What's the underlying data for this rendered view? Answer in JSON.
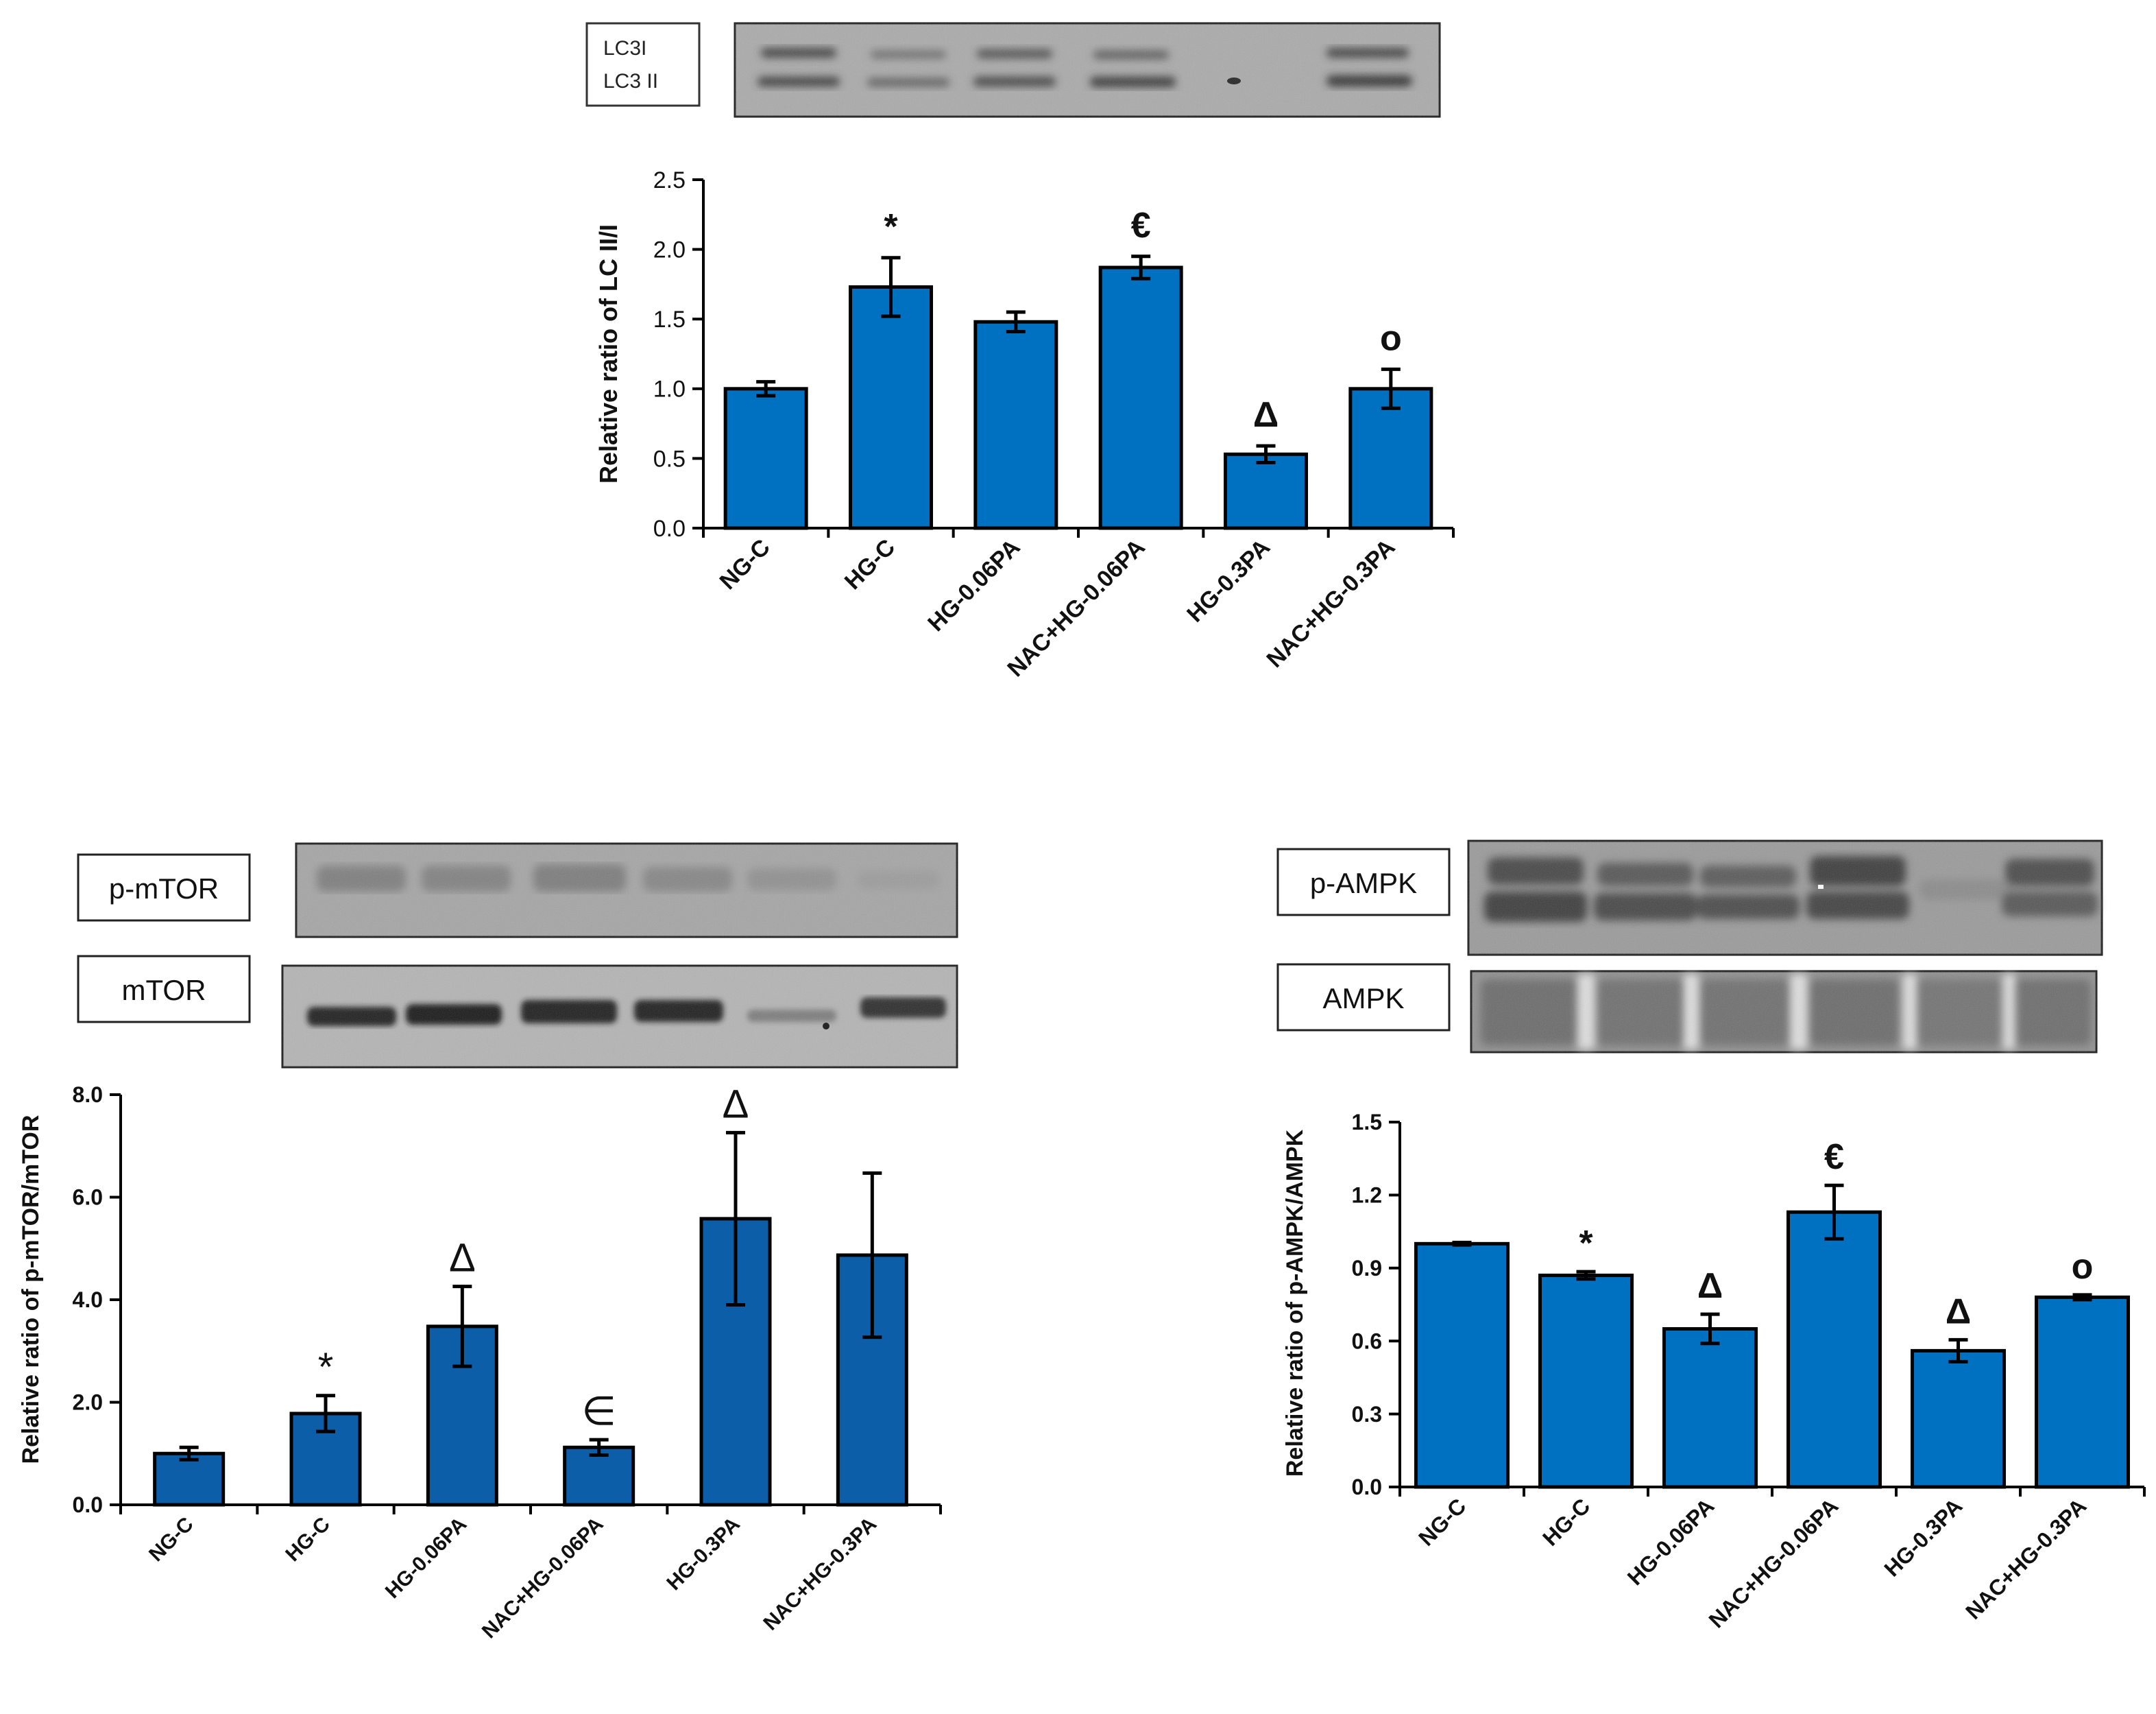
{
  "blots": {
    "lc3": {
      "labels": [
        "LC3I",
        "LC3 II"
      ]
    },
    "mtor": {
      "phospho_label": "p-mTOR",
      "total_label": "mTOR"
    },
    "ampk": {
      "phospho_label": "p-AMPK",
      "total_label": "AMPK"
    }
  },
  "colors": {
    "bar_top": "#0070c0",
    "bar_bottom_left": "#0d5ea8",
    "error_bar": "#000000",
    "axis": "#000000"
  },
  "chart_data": [
    {
      "id": "lc3",
      "type": "bar",
      "title": "",
      "xlabel": "",
      "ylabel": "Relative ratio of LC II/I",
      "categories": [
        "NG-C",
        "HG-C",
        "HG-0.06PA",
        "NAC+HG-0.06PA",
        "HG-0.3PA",
        "NAC+HG-0.3PA"
      ],
      "values": [
        1.0,
        1.73,
        1.48,
        1.87,
        0.53,
        1.0
      ],
      "errors": [
        0.05,
        0.21,
        0.07,
        0.08,
        0.06,
        0.14
      ],
      "significance": [
        "",
        "*",
        "",
        "€",
        "Δ",
        "o"
      ],
      "ylim": [
        0,
        2.5
      ],
      "yticks": [
        "0.0",
        "0.5",
        "1.0",
        "1.5",
        "2.0",
        "2.5"
      ]
    },
    {
      "id": "mtor",
      "type": "bar",
      "title": "",
      "xlabel": "",
      "ylabel": "Relative ratio of p-mTOR/mTOR",
      "categories": [
        "NG-C",
        "HG-C",
        "HG-0.06PA",
        "NAC+HG-0.06PA",
        "HG-0.3PA",
        "NAC+HG-0.3PA"
      ],
      "values": [
        1.0,
        1.78,
        3.48,
        1.12,
        5.58,
        4.87
      ],
      "errors": [
        0.12,
        0.35,
        0.78,
        0.15,
        1.68,
        1.6
      ],
      "significance": [
        "",
        "*",
        "Δ",
        "∈",
        "Δ",
        ""
      ],
      "ylim": [
        0,
        8
      ],
      "yticks": [
        "0.0",
        "2.0",
        "4.0",
        "6.0",
        "8.0"
      ]
    },
    {
      "id": "ampk",
      "type": "bar",
      "title": "",
      "xlabel": "",
      "ylabel": "Relative ratio of p-AMPK/AMPK",
      "categories": [
        "NG-C",
        "HG-C",
        "HG-0.06PA",
        "NAC+HG-0.06PA",
        "HG-0.3PA",
        "NAC+HG-0.3PA"
      ],
      "values": [
        1.0,
        0.87,
        0.65,
        1.13,
        0.56,
        0.78
      ],
      "errors": [
        0.005,
        0.015,
        0.06,
        0.11,
        0.045,
        0.01
      ],
      "significance": [
        "",
        "*",
        "Δ",
        "€",
        "Δ",
        "o"
      ],
      "ylim": [
        0,
        1.5
      ],
      "yticks": [
        "0.0",
        "0.3",
        "0.6",
        "0.9",
        "1.2",
        "1.5"
      ]
    }
  ]
}
